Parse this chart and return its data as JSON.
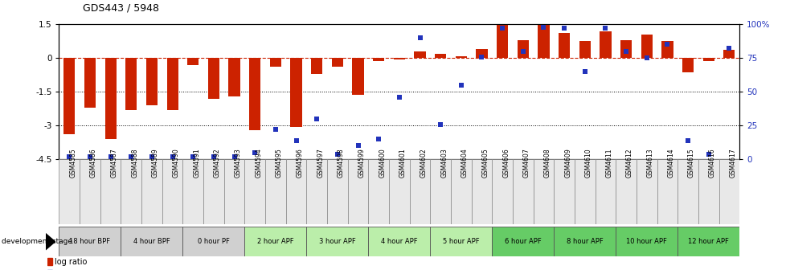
{
  "title": "GDS443 / 5948",
  "samples": [
    "GSM4585",
    "GSM4586",
    "GSM4587",
    "GSM4588",
    "GSM4589",
    "GSM4590",
    "GSM4591",
    "GSM4592",
    "GSM4593",
    "GSM4594",
    "GSM4595",
    "GSM4596",
    "GSM4597",
    "GSM4598",
    "GSM4599",
    "GSM4600",
    "GSM4601",
    "GSM4602",
    "GSM4603",
    "GSM4604",
    "GSM4605",
    "GSM4606",
    "GSM4607",
    "GSM4608",
    "GSM4609",
    "GSM4610",
    "GSM4611",
    "GSM4612",
    "GSM4613",
    "GSM4614",
    "GSM4615",
    "GSM4616",
    "GSM4617"
  ],
  "log_ratio": [
    -3.4,
    -2.2,
    -3.6,
    -2.3,
    -2.1,
    -2.3,
    -0.3,
    -1.8,
    -1.7,
    -3.2,
    -0.4,
    -3.05,
    -0.7,
    -0.4,
    -1.65,
    -0.12,
    -0.07,
    0.3,
    0.18,
    0.08,
    0.4,
    1.55,
    0.8,
    1.65,
    1.1,
    0.75,
    1.2,
    0.8,
    1.05,
    0.75,
    -0.65,
    -0.12,
    0.35
  ],
  "percentile": [
    2,
    2,
    2,
    2,
    2,
    2,
    2,
    2,
    2,
    5,
    22,
    14,
    30,
    4,
    10,
    15,
    46,
    90,
    26,
    55,
    76,
    97,
    80,
    98,
    97,
    65,
    97,
    80,
    75,
    85,
    14,
    4,
    82
  ],
  "ylim_left": [
    -4.5,
    1.5
  ],
  "ylim_right": [
    0,
    100
  ],
  "yticks_left": [
    1.5,
    0,
    -1.5,
    -3,
    -4.5
  ],
  "yticks_right": [
    100,
    75,
    50,
    25,
    0
  ],
  "bar_color": "#CC2200",
  "dot_color": "#2233BB",
  "zero_line_color": "#CC2200",
  "hline_color": "#555555",
  "stages": [
    {
      "label": "18 hour BPF",
      "start": 0,
      "end": 2,
      "color": "#d0d0d0"
    },
    {
      "label": "4 hour BPF",
      "start": 3,
      "end": 5,
      "color": "#d0d0d0"
    },
    {
      "label": "0 hour PF",
      "start": 6,
      "end": 8,
      "color": "#d0d0d0"
    },
    {
      "label": "2 hour APF",
      "start": 9,
      "end": 11,
      "color": "#bbeeaa"
    },
    {
      "label": "3 hour APF",
      "start": 12,
      "end": 14,
      "color": "#bbeeaa"
    },
    {
      "label": "4 hour APF",
      "start": 15,
      "end": 17,
      "color": "#bbeeaa"
    },
    {
      "label": "5 hour APF",
      "start": 18,
      "end": 20,
      "color": "#bbeeaa"
    },
    {
      "label": "6 hour APF",
      "start": 21,
      "end": 23,
      "color": "#66cc66"
    },
    {
      "label": "8 hour APF",
      "start": 24,
      "end": 26,
      "color": "#66cc66"
    },
    {
      "label": "10 hour APF",
      "start": 27,
      "end": 29,
      "color": "#66cc66"
    },
    {
      "label": "12 hour APF",
      "start": 30,
      "end": 32,
      "color": "#66cc66"
    }
  ]
}
